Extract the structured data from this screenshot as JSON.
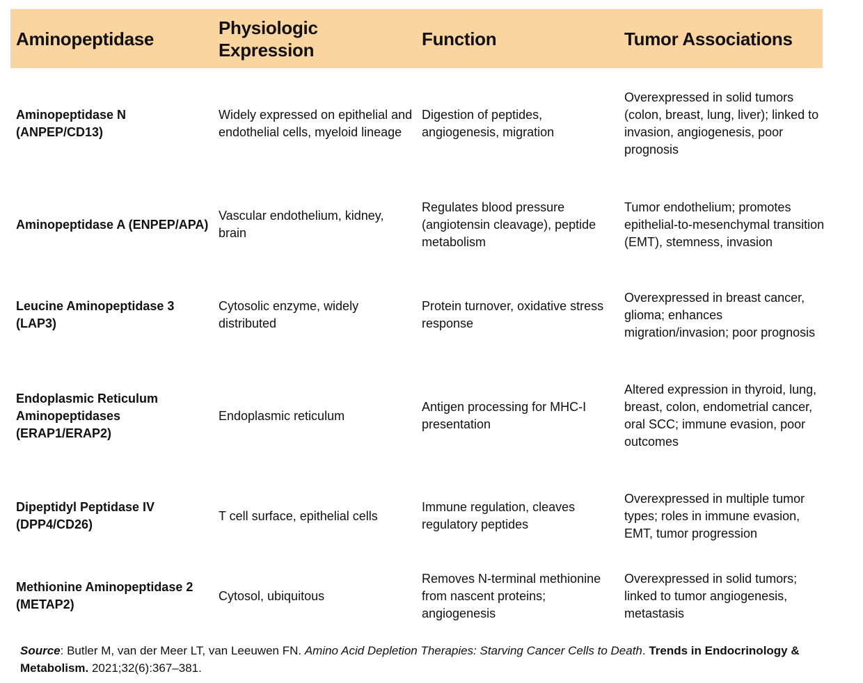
{
  "table": {
    "header_color": "#fbd5a0",
    "columns": [
      "Aminopeptidase",
      "Physiologic Expression",
      "Function",
      "Tumor Associations"
    ],
    "rows": [
      [
        "Aminopeptidase N (ANPEP/CD13)",
        "Widely expressed on epithelial and endothelial cells, myeloid lineage",
        "Digestion of peptides, angiogenesis, migration",
        "Overexpressed in solid tumors (colon, breast, lung, liver); linked to invasion, angiogenesis, poor prognosis"
      ],
      [
        "Aminopeptidase A (ENPEP/APA)",
        "Vascular endothelium, kidney, brain",
        "Regulates blood pressure (angiotensin cleavage), peptide metabolism",
        "Tumor endothelium; promotes epithelial-to-mesenchymal transition (EMT), stemness, invasion"
      ],
      [
        "Leucine Aminopeptidase 3 (LAP3)",
        "Cytosolic enzyme, widely distributed",
        "Protein turnover, oxidative stress response",
        "Overexpressed in breast cancer, glioma; enhances migration/invasion; poor prognosis"
      ],
      [
        "Endoplasmic Reticulum Aminopeptidases (ERAP1/ERAP2)",
        "Endoplasmic reticulum",
        "Antigen processing for MHC-I presentation",
        "Altered expression in thyroid, lung, breast, colon, endometrial cancer, oral SCC; immune evasion, poor outcomes"
      ],
      [
        "Dipeptidyl Peptidase IV (DPP4/CD26)",
        "T cell surface, epithelial cells",
        "Immune regulation, cleaves regulatory peptides",
        "Overexpressed in multiple tumor types; roles in immune evasion, EMT, tumor progression"
      ],
      [
        "Methionine Aminopeptidase 2 (METAP2)",
        "Cytosol, ubiquitous",
        "Removes N-terminal methionine from nascent proteins; angiogenesis",
        "Overexpressed in solid tumors; linked to tumor angiogenesis, metastasis"
      ]
    ]
  },
  "source": {
    "label": "Source",
    "authors": ": Butler M, van der Meer LT, van Leeuwen FN. ",
    "title": "Amino Acid Depletion Therapies: Starving Cancer Cells to Death",
    "sep": ". ",
    "journal": "Trends in Endocrinology & Metabolism.",
    "citation": " 2021;32(6):367–381."
  }
}
